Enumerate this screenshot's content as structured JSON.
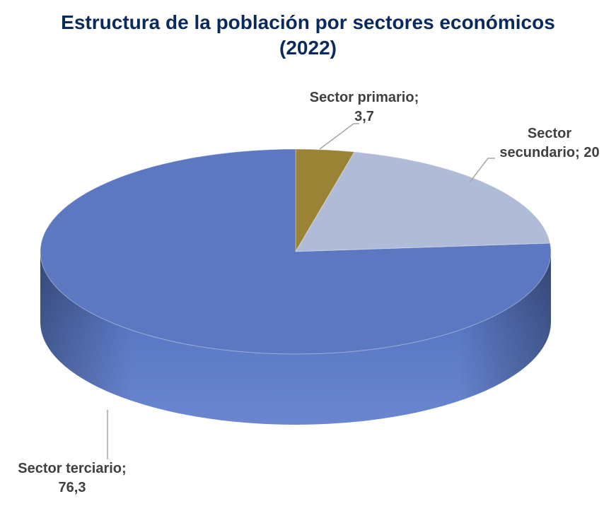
{
  "chart_data": {
    "type": "pie",
    "title": "Estructura de la población por sectores económicos",
    "subtitle": "(2022)",
    "categories": [
      "Sector primario",
      "Sector secundario",
      "Sector terciario"
    ],
    "values": [
      3.7,
      20,
      76.3
    ],
    "data_labels": [
      "Sector primario;",
      "3,7",
      "Sector",
      "secundario; 20",
      "Sector terciario;",
      "76,3"
    ],
    "colors": [
      "#9a8335",
      "#b0bbd8",
      "#5b78c0"
    ],
    "legend": "none",
    "style": "3d"
  }
}
